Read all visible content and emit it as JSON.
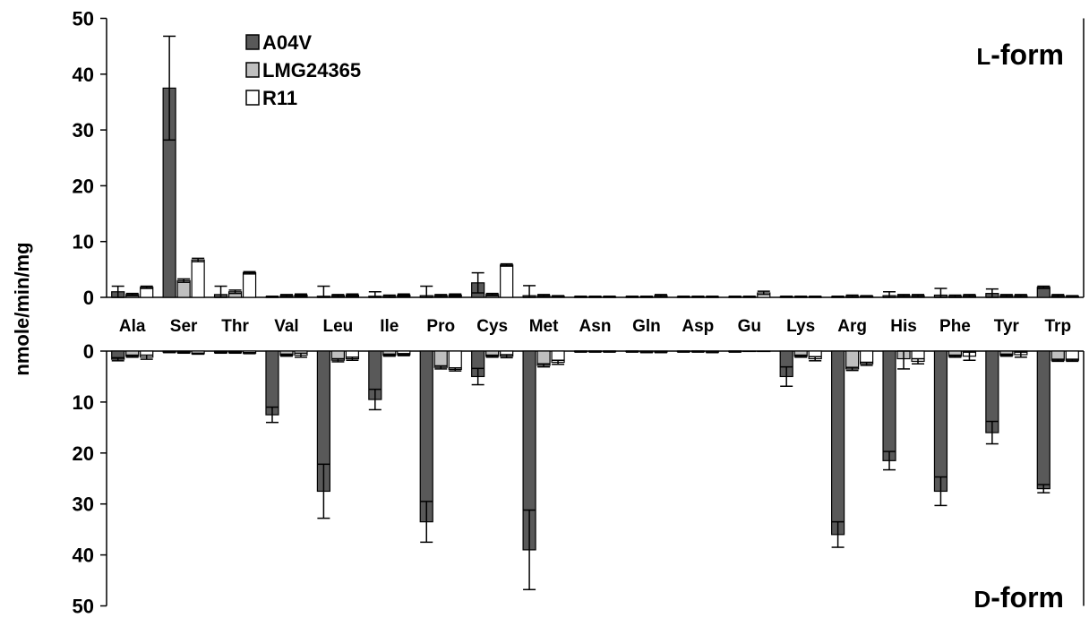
{
  "chart_data": {
    "type": "bar",
    "ylabel": "nmole/min/mg",
    "categories": [
      "Ala",
      "Ser",
      "Thr",
      "Val",
      "Leu",
      "Ile",
      "Pro",
      "Cys",
      "Met",
      "Asn",
      "Gln",
      "Asp",
      "Gu",
      "Lys",
      "Arg",
      "His",
      "Phe",
      "Tyr",
      "Trp"
    ],
    "legend_position": "top-left",
    "colors": {
      "A04V": "#595959",
      "LMG24365": "#bfbfbf",
      "R11": "#ffffff"
    },
    "panels": [
      {
        "label_prefix": "L",
        "label_suffix": "-form",
        "direction": "up",
        "ylim": [
          0,
          50
        ],
        "yticks": [
          "0",
          "10",
          "20",
          "30",
          "40",
          "50"
        ],
        "series": [
          {
            "name": "A04V",
            "values": [
              1.0,
              37.5,
              0.5,
              0.1,
              0.2,
              0.2,
              0.3,
              2.6,
              0.3,
              0.1,
              0.1,
              0.1,
              0.1,
              0.1,
              0.1,
              0.3,
              0.4,
              0.7,
              1.8
            ],
            "errors": [
              1.0,
              9.3,
              1.5,
              0.1,
              1.8,
              0.8,
              1.7,
              1.8,
              1.8,
              0.1,
              0.1,
              0.1,
              0.1,
              0.1,
              0.1,
              0.7,
              1.2,
              0.8,
              0.2
            ]
          },
          {
            "name": "LMG24365",
            "values": [
              0.5,
              3.0,
              1.0,
              0.3,
              0.3,
              0.2,
              0.3,
              0.5,
              0.3,
              0.1,
              0.1,
              0.1,
              0.1,
              0.1,
              0.2,
              0.3,
              0.2,
              0.3,
              0.3
            ],
            "errors": [
              0.2,
              0.3,
              0.3,
              0.2,
              0.2,
              0.2,
              0.2,
              0.2,
              0.2,
              0.1,
              0.1,
              0.1,
              0.1,
              0.1,
              0.2,
              0.2,
              0.2,
              0.2,
              0.2
            ]
          },
          {
            "name": "R11",
            "values": [
              1.8,
              6.7,
              4.4,
              0.4,
              0.4,
              0.4,
              0.4,
              5.8,
              0.2,
              0.1,
              0.3,
              0.1,
              0.8,
              0.1,
              0.2,
              0.3,
              0.3,
              0.3,
              0.2
            ],
            "errors": [
              0.2,
              0.3,
              0.2,
              0.2,
              0.2,
              0.2,
              0.2,
              0.2,
              0.1,
              0.1,
              0.2,
              0.1,
              0.3,
              0.1,
              0.1,
              0.2,
              0.2,
              0.2,
              0.1
            ]
          }
        ]
      },
      {
        "label_prefix": "D",
        "label_suffix": "-form",
        "direction": "down",
        "ylim": [
          0,
          50
        ],
        "yticks": [
          "0",
          "10",
          "20",
          "30",
          "40",
          "50"
        ],
        "series": [
          {
            "name": "A04V",
            "values": [
              1.6,
              0.2,
              0.3,
              12.5,
              27.5,
              9.5,
              33.5,
              5.0,
              39.0,
              0.1,
              0.1,
              0.1,
              0.1,
              5.0,
              36.0,
              21.5,
              27.5,
              16.0,
              27.0
            ],
            "errors": [
              0.3,
              0.1,
              0.1,
              1.5,
              5.3,
              2.0,
              4.0,
              1.6,
              7.8,
              0.1,
              0.1,
              0.1,
              0.1,
              1.9,
              2.5,
              1.8,
              2.8,
              2.2,
              0.8
            ]
          },
          {
            "name": "LMG24365",
            "values": [
              1.0,
              0.3,
              0.3,
              0.8,
              1.8,
              0.8,
              3.2,
              1.0,
              2.8,
              0.1,
              0.2,
              0.1,
              0.0,
              1.0,
              3.5,
              1.5,
              1.0,
              0.8,
              1.8
            ],
            "errors": [
              0.2,
              0.1,
              0.1,
              0.2,
              0.3,
              0.2,
              0.3,
              0.2,
              0.3,
              0.1,
              0.1,
              0.1,
              0.0,
              0.2,
              0.3,
              2.0,
              0.2,
              0.2,
              0.2
            ]
          },
          {
            "name": "R11",
            "values": [
              1.2,
              0.5,
              0.4,
              0.8,
              1.5,
              0.7,
              3.6,
              1.0,
              2.2,
              0.1,
              0.2,
              0.2,
              0.0,
              1.5,
              2.5,
              2.0,
              1.0,
              0.7,
              1.8
            ],
            "errors": [
              0.4,
              0.1,
              0.1,
              0.4,
              0.3,
              0.2,
              0.3,
              0.3,
              0.4,
              0.1,
              0.1,
              0.1,
              0.0,
              0.4,
              0.3,
              0.5,
              0.8,
              0.5,
              0.2
            ]
          }
        ]
      }
    ]
  }
}
